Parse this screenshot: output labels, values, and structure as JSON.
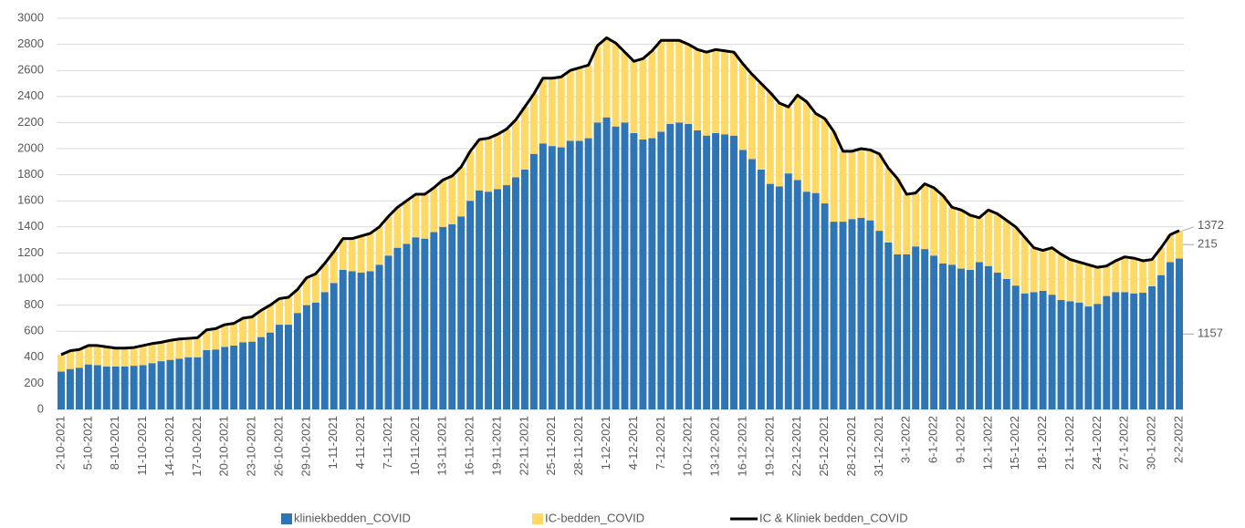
{
  "chart_data": {
    "type": "stacked-bar-line",
    "categories": [
      "2-10-2021",
      null,
      null,
      "5-10-2021",
      null,
      null,
      "8-10-2021",
      null,
      null,
      "11-10-2021",
      null,
      null,
      "14-10-2021",
      null,
      null,
      "17-10-2021",
      null,
      null,
      "20-10-2021",
      null,
      null,
      "23-10-2021",
      null,
      null,
      "26-10-2021",
      null,
      null,
      "29-10-2021",
      null,
      null,
      "1-11-2021",
      null,
      null,
      "4-11-2021",
      null,
      null,
      "7-11-2021",
      null,
      null,
      "10-11-2021",
      null,
      null,
      "13-11-2021",
      null,
      null,
      "16-11-2021",
      null,
      null,
      "19-11-2021",
      null,
      null,
      "22-11-2021",
      null,
      null,
      "25-11-2021",
      null,
      null,
      "28-11-2021",
      null,
      null,
      "1-12-2021",
      null,
      null,
      "4-12-2021",
      null,
      null,
      "7-12-2021",
      null,
      null,
      "10-12-2021",
      null,
      null,
      "13-12-2021",
      null,
      null,
      "16-12-2021",
      null,
      null,
      "19-12-2021",
      null,
      null,
      "22-12-2021",
      null,
      null,
      "25-12-2021",
      null,
      null,
      "28-12-2021",
      null,
      null,
      "31-12-2021",
      null,
      null,
      "3-1-2022",
      null,
      null,
      "6-1-2022",
      null,
      null,
      "9-1-2022",
      null,
      null,
      "12-1-2022",
      null,
      null,
      "15-1-2022",
      null,
      null,
      "18-1-2022",
      null,
      null,
      "21-1-2022",
      null,
      null,
      "24-1-2022",
      null,
      null,
      "27-1-2022",
      null,
      null,
      "30-1-2022",
      null,
      null,
      "2-2-2022"
    ],
    "series": [
      {
        "name": "kliniekbedden_COVID",
        "color": "#2e75b6",
        "kind": "bar",
        "values": [
          290,
          310,
          320,
          345,
          340,
          330,
          330,
          330,
          335,
          340,
          355,
          370,
          380,
          390,
          400,
          400,
          455,
          460,
          480,
          490,
          515,
          520,
          555,
          590,
          650,
          650,
          740,
          800,
          820,
          900,
          970,
          1070,
          1060,
          1050,
          1060,
          1110,
          1180,
          1240,
          1270,
          1320,
          1310,
          1360,
          1400,
          1420,
          1480,
          1600,
          1680,
          1670,
          1690,
          1720,
          1780,
          1840,
          1960,
          2040,
          2020,
          2010,
          2060,
          2060,
          2080,
          2200,
          2240,
          2170,
          2200,
          2120,
          2070,
          2080,
          2130,
          2190,
          2200,
          2190,
          2140,
          2100,
          2120,
          2110,
          2100,
          1990,
          1920,
          1840,
          1730,
          1710,
          1810,
          1760,
          1670,
          1660,
          1580,
          1440,
          1440,
          1460,
          1470,
          1450,
          1370,
          1280,
          1190,
          1190,
          1250,
          1230,
          1180,
          1120,
          1110,
          1080,
          1070,
          1130,
          1100,
          1050,
          1000,
          950,
          890,
          900,
          910,
          880,
          840,
          830,
          820,
          790,
          810,
          870,
          900,
          900,
          890,
          895,
          945,
          1030,
          1130,
          1157
        ]
      },
      {
        "name": "IC-bedden_COVID",
        "color": "#ffd966",
        "kind": "bar",
        "values": [
          130,
          140,
          140,
          145,
          150,
          150,
          140,
          140,
          140,
          150,
          150,
          145,
          150,
          150,
          145,
          150,
          155,
          160,
          170,
          170,
          185,
          190,
          205,
          210,
          200,
          210,
          180,
          210,
          220,
          220,
          240,
          240,
          250,
          280,
          290,
          290,
          300,
          310,
          330,
          330,
          340,
          340,
          360,
          370,
          380,
          380,
          390,
          410,
          420,
          430,
          440,
          480,
          460,
          500,
          520,
          540,
          540,
          560,
          560,
          590,
          610,
          640,
          540,
          550,
          620,
          670,
          700,
          640,
          630,
          610,
          620,
          640,
          640,
          640,
          640,
          660,
          650,
          660,
          700,
          640,
          510,
          650,
          690,
          610,
          650,
          690,
          540,
          520,
          530,
          540,
          590,
          570,
          580,
          460,
          410,
          500,
          520,
          520,
          440,
          450,
          420,
          340,
          430,
          450,
          450,
          450,
          430,
          340,
          310,
          360,
          350,
          320,
          310,
          320,
          280,
          230,
          240,
          270,
          270,
          245,
          205,
          210,
          210,
          215
        ]
      },
      {
        "name": "IC & Kliniek bedden_COVID",
        "color": "#000000",
        "kind": "line",
        "values": [
          420,
          450,
          460,
          490,
          490,
          480,
          470,
          470,
          475,
          490,
          505,
          515,
          530,
          540,
          545,
          550,
          610,
          620,
          650,
          660,
          700,
          710,
          760,
          800,
          850,
          860,
          920,
          1010,
          1040,
          1120,
          1210,
          1310,
          1310,
          1330,
          1350,
          1400,
          1480,
          1550,
          1600,
          1650,
          1650,
          1700,
          1760,
          1790,
          1860,
          1980,
          2070,
          2080,
          2110,
          2150,
          2220,
          2320,
          2420,
          2540,
          2540,
          2550,
          2600,
          2620,
          2640,
          2790,
          2850,
          2810,
          2740,
          2670,
          2690,
          2750,
          2830,
          2830,
          2830,
          2800,
          2760,
          2740,
          2760,
          2750,
          2740,
          2650,
          2570,
          2500,
          2430,
          2350,
          2320,
          2410,
          2360,
          2270,
          2230,
          2130,
          1980,
          1980,
          2000,
          1990,
          1960,
          1850,
          1770,
          1650,
          1660,
          1730,
          1700,
          1640,
          1550,
          1530,
          1490,
          1470,
          1530,
          1500,
          1450,
          1400,
          1320,
          1240,
          1220,
          1240,
          1190,
          1150,
          1130,
          1110,
          1090,
          1100,
          1140,
          1170,
          1160,
          1140,
          1150,
          1240,
          1340,
          1372
        ]
      }
    ],
    "ylim": [
      0,
      3000
    ],
    "yticks": [
      0,
      200,
      400,
      600,
      800,
      1000,
      1200,
      1400,
      1600,
      1800,
      2000,
      2200,
      2400,
      2600,
      2800,
      3000
    ],
    "grid": true,
    "legend": "bottom"
  }
}
